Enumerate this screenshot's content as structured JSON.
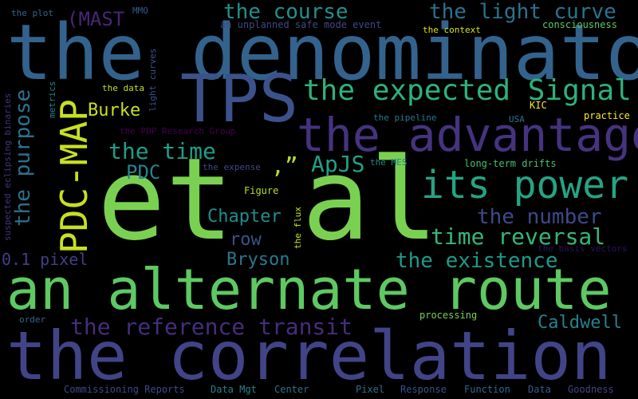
{
  "words": [
    {
      "text": "et al",
      "color": "#7ad151"
    },
    {
      "text": "the denominator",
      "color": "#33638d"
    },
    {
      "text": "the correlation",
      "color": "#414487"
    },
    {
      "text": "an alternate route",
      "color": "#5ec962"
    },
    {
      "text": "TPS",
      "color": "#3b528b"
    },
    {
      "text": "the advantage",
      "color": "#46337f"
    },
    {
      "text": "PDC-MAP",
      "color": "#c8e020"
    },
    {
      "text": "its power",
      "color": "#26a384"
    },
    {
      "text": "the expected Signal",
      "color": "#2db27d"
    },
    {
      "text": "the light curve",
      "color": "#2c728e"
    },
    {
      "text": "the course",
      "color": "#21918c"
    },
    {
      "text": "the time",
      "color": "#1f9e89"
    },
    {
      "text": "the reference transit",
      "color": "#472d7b"
    },
    {
      "text": "time reversal",
      "color": "#35b779"
    },
    {
      "text": "the number",
      "color": "#3e4989"
    },
    {
      "text": "the existence",
      "color": "#1f9a8a"
    },
    {
      "text": "the purpose",
      "color": "#2c718e"
    },
    {
      "text": "PDC",
      "color": "#25848e"
    },
    {
      "text": ",”",
      "color": "#b5de2b"
    },
    {
      "text": "ApJS",
      "color": "#1fa187"
    },
    {
      "text": "Chapter",
      "color": "#228c8d"
    },
    {
      "text": "row",
      "color": "#3b528b"
    },
    {
      "text": "Bryson",
      "color": "#2a788e"
    },
    {
      "text": "Caldwell",
      "color": "#26828e"
    },
    {
      "text": "Burke",
      "color": "#c8e020"
    },
    {
      "text": "(MAST",
      "color": "#482677"
    },
    {
      "text": "0.1 pixel",
      "color": "#433e85"
    },
    {
      "text": "the plot",
      "color": "#31688e"
    },
    {
      "text": "MMO",
      "color": "#38598c"
    },
    {
      "text": "an unplanned safe mode event",
      "color": "#3e4a89"
    },
    {
      "text": "the context",
      "color": "#d8e219"
    },
    {
      "text": "consciousness",
      "color": "#5ec962"
    },
    {
      "text": "the data",
      "color": "#c0df25"
    },
    {
      "text": "light curves",
      "color": "#3b528b"
    },
    {
      "text": "metrics",
      "color": "#26828e"
    },
    {
      "text": "suspected eclipsing binaries",
      "color": "#46337f"
    },
    {
      "text": "the PDP Research Group",
      "color": "#440154"
    },
    {
      "text": "the pipeline",
      "color": "#2a788e"
    },
    {
      "text": "KIC",
      "color": "#fde725"
    },
    {
      "text": "USA",
      "color": "#2c728e"
    },
    {
      "text": "practice",
      "color": "#fde725"
    },
    {
      "text": "the expense",
      "color": "#3e4989"
    },
    {
      "text": "the MES",
      "color": "#24878e"
    },
    {
      "text": "long-term drifts",
      "color": "#48c16e"
    },
    {
      "text": "Figure",
      "color": "#b5de2b"
    },
    {
      "text": "the flux",
      "color": "#c8e020"
    },
    {
      "text": "the basis vectors",
      "color": "#2d1160"
    },
    {
      "text": "order",
      "color": "#31688e"
    },
    {
      "text": "processing",
      "color": "#7ad151"
    },
    {
      "text": "Commissioning Reports",
      "color": "#3e4989"
    },
    {
      "text": "Data Mgt",
      "color": "#26828e"
    },
    {
      "text": "Center",
      "color": "#2c728e"
    },
    {
      "text": "Pixel",
      "color": "#2c728e"
    },
    {
      "text": "Response",
      "color": "#3b528b"
    },
    {
      "text": "Function",
      "color": "#31688e"
    },
    {
      "text": "Data",
      "color": "#38598c"
    },
    {
      "text": "Goodness",
      "color": "#414487"
    }
  ]
}
